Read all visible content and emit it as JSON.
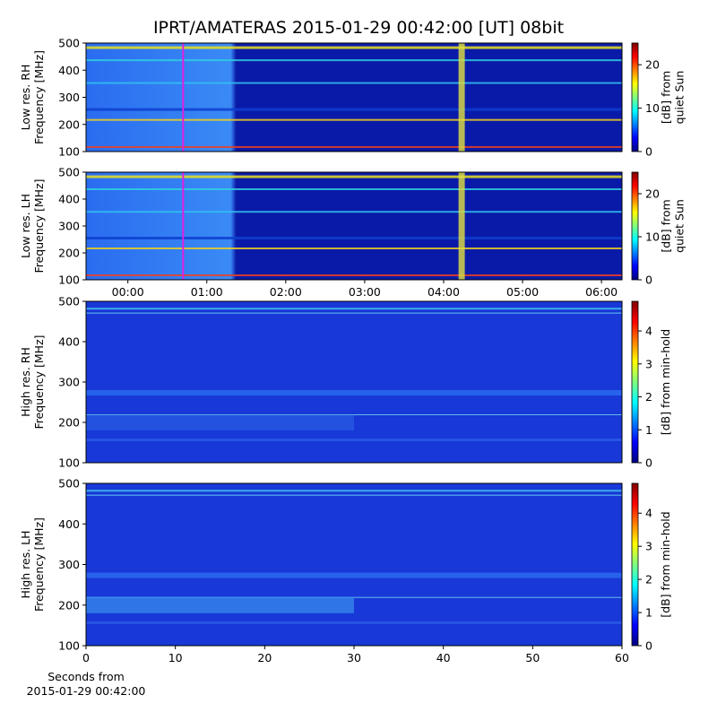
{
  "chart_data": [
    {
      "type": "heatmap",
      "title": "IPRT/AMATERAS 2015-01-29 00:42:00 [UT]   08bit",
      "ylabel": [
        "Low res. RH",
        "Frequency [MHz]"
      ],
      "ylim": [
        100,
        500
      ],
      "yticks": [
        100,
        200,
        300,
        400,
        500
      ],
      "xlim": [
        -0.53,
        6.26
      ],
      "markers": [
        {
          "x": 0.7,
          "color": "#e020e0"
        }
      ],
      "colormap": "jet",
      "colorbar": {
        "label": [
          "[dB] from",
          "quiet Sun"
        ],
        "lim": [
          0,
          25
        ],
        "ticks": [
          0,
          10,
          20
        ]
      }
    },
    {
      "type": "heatmap",
      "ylabel": [
        "Low res. LH",
        "Frequency [MHz]"
      ],
      "ylim": [
        100,
        500
      ],
      "yticks": [
        100,
        200,
        300,
        400,
        500
      ],
      "xlim": [
        -0.53,
        6.26
      ],
      "markers": [
        {
          "x": 0.7,
          "color": "#e020e0"
        }
      ],
      "xticks": [
        {
          "value": 0,
          "label": "00:00"
        },
        {
          "value": 1,
          "label": "01:00"
        },
        {
          "value": 2,
          "label": "02:00"
        },
        {
          "value": 3,
          "label": "03:00"
        },
        {
          "value": 4,
          "label": "04:00"
        },
        {
          "value": 5,
          "label": "05:00"
        },
        {
          "value": 6,
          "label": "06:00"
        }
      ],
      "colormap": "jet",
      "colorbar": {
        "label": [
          "[dB] from",
          "quiet Sun"
        ],
        "lim": [
          0,
          25
        ],
        "ticks": [
          0,
          10,
          20
        ]
      }
    },
    {
      "type": "heatmap",
      "ylabel": [
        "High res. RH",
        "Frequency [MHz]"
      ],
      "ylim": [
        100,
        500
      ],
      "yticks": [
        100,
        200,
        300,
        400,
        500
      ],
      "colormap": "jet",
      "colorbar": {
        "label": [
          "[dB] from min-hold"
        ],
        "lim": [
          0,
          4.9
        ],
        "ticks": [
          0,
          1,
          2,
          3,
          4
        ]
      }
    },
    {
      "type": "heatmap",
      "ylabel": [
        "High res. LH",
        "Frequency [MHz]"
      ],
      "ylim": [
        100,
        500
      ],
      "yticks": [
        100,
        200,
        300,
        400,
        500
      ],
      "xlim": [
        0,
        60
      ],
      "xticks": [
        0,
        10,
        20,
        30,
        40,
        50,
        60
      ],
      "xlabel": [
        "Seconds from",
        "2015-01-29 00:42:00"
      ],
      "colormap": "jet",
      "colorbar": {
        "label": [
          "[dB] from min-hold"
        ],
        "lim": [
          0,
          4.9
        ],
        "ticks": [
          0,
          1,
          2,
          3,
          4
        ]
      }
    }
  ]
}
